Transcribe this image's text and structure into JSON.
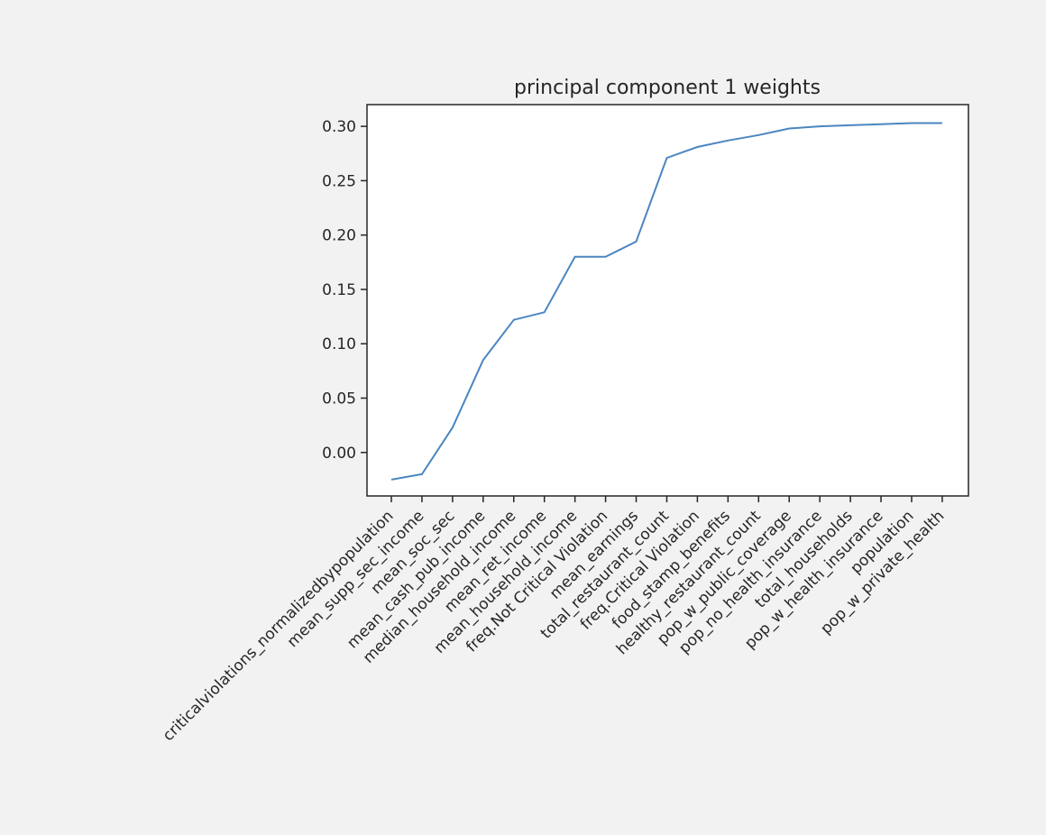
{
  "chart_data": {
    "type": "line",
    "title": "principal component 1 weights",
    "xlabel": "",
    "ylabel": "",
    "grid": false,
    "legend": "none",
    "categories": [
      "criticalviolations_normalizedbypopulation",
      "mean_supp_sec_income",
      "mean_soc_sec",
      "mean_cash_pub_income",
      "median_household_income",
      "mean_ret_income",
      "mean_household_income",
      "freq.Not Critical Violation",
      "mean_earnings",
      "total_restaurant_count",
      "freq.Critical Violation",
      "food_stamp_benefits",
      "healthy_restaurant_count",
      "pop_w_public_coverage",
      "pop_no_health_insurance",
      "total_households",
      "pop_w_health_insurance",
      "population",
      "pop_w_private_health"
    ],
    "series": [
      {
        "values": [
          -0.025,
          -0.02,
          0.023,
          0.085,
          0.122,
          0.129,
          0.18,
          0.18,
          0.194,
          0.271,
          0.281,
          0.287,
          0.292,
          0.298,
          0.3,
          0.301,
          0.302,
          0.303,
          0.303
        ]
      }
    ],
    "ylim": [
      -0.04,
      0.32
    ],
    "yticks": [
      "0.00",
      "0.05",
      "0.10",
      "0.15",
      "0.20",
      "0.25",
      "0.30"
    ],
    "ytick_values": [
      0.0,
      0.05,
      0.1,
      0.15,
      0.2,
      0.25,
      0.3
    ],
    "colors": {
      "line": "#4a86c0",
      "axes": "#262626",
      "plot_bg": "#ffffff",
      "page_bg": "#f2f2f2"
    }
  }
}
